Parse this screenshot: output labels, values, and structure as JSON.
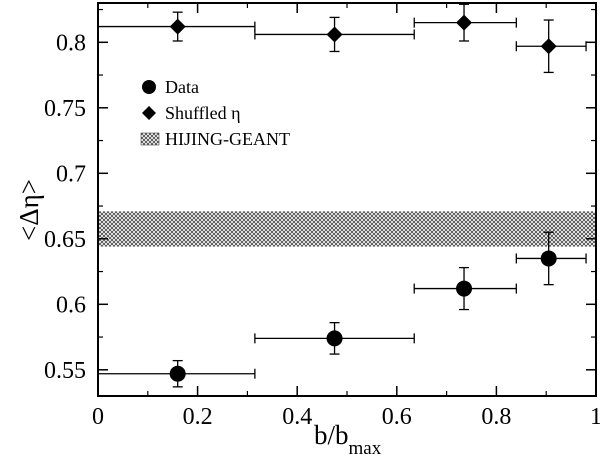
{
  "chart_data": {
    "type": "scatter",
    "xlabel": "b/b",
    "xlabel_sub": "max",
    "ylabel": "<Δη>",
    "xlim": [
      0,
      1
    ],
    "ylim": [
      0.53,
      0.83
    ],
    "x_ticks": [
      0,
      0.2,
      0.4,
      0.6,
      0.8,
      1
    ],
    "x_tick_labels": [
      "0",
      "0.2",
      "0.4",
      "0.6",
      "0.8",
      "1"
    ],
    "y_ticks": [
      0.55,
      0.6,
      0.65,
      0.7,
      0.75,
      0.8
    ],
    "y_tick_labels": [
      "0.55",
      "0.6",
      "0.65",
      "0.7",
      "0.75",
      "0.8"
    ],
    "grid": false,
    "legend_position": "upper-left",
    "series": [
      {
        "name": "Data",
        "marker": "circle",
        "points": [
          {
            "x": 0.16,
            "y": 0.547,
            "xerr": [
              0.0,
              0.315
            ],
            "yerr": 0.01
          },
          {
            "x": 0.475,
            "y": 0.574,
            "xerr": [
              0.315,
              0.635
            ],
            "yerr": 0.012
          },
          {
            "x": 0.735,
            "y": 0.612,
            "xerr": [
              0.635,
              0.84
            ],
            "yerr": 0.016
          },
          {
            "x": 0.905,
            "y": 0.635,
            "xerr": [
              0.84,
              0.98
            ],
            "yerr": 0.02
          }
        ]
      },
      {
        "name": "Shuffled η",
        "marker": "diamond",
        "points": [
          {
            "x": 0.16,
            "y": 0.812,
            "xerr": [
              0.0,
              0.315
            ],
            "yerr": 0.011
          },
          {
            "x": 0.475,
            "y": 0.806,
            "xerr": [
              0.315,
              0.635
            ],
            "yerr": 0.013
          },
          {
            "x": 0.735,
            "y": 0.815,
            "xerr": [
              0.635,
              0.84
            ],
            "yerr": 0.014
          },
          {
            "x": 0.905,
            "y": 0.797,
            "xerr": [
              0.84,
              0.98
            ],
            "yerr": 0.02
          }
        ]
      }
    ],
    "band": {
      "name": "HIJING-GEANT",
      "y_low": 0.644,
      "y_high": 0.671,
      "x_range": [
        0,
        1
      ]
    }
  }
}
